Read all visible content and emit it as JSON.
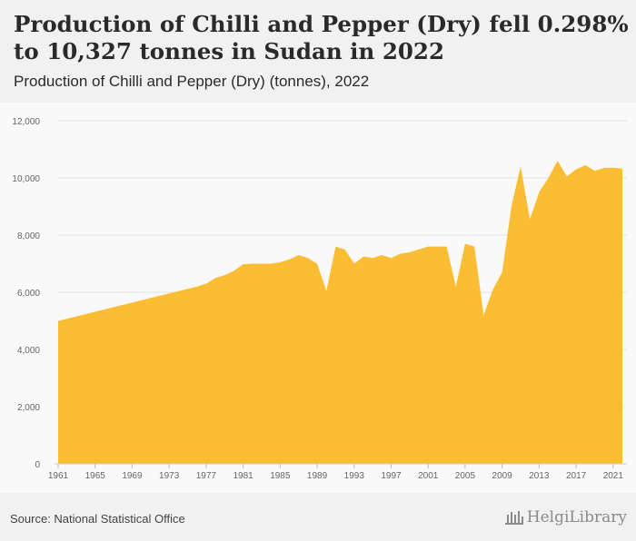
{
  "header": {
    "title": "Production of Chilli and Pepper (Dry) fell 0.298% to 10,327 tonnes in Sudan in 2022",
    "subtitle": "Production of Chilli and Pepper (Dry) (tonnes), 2022"
  },
  "footer": {
    "source": "Source: National Statistical Office",
    "logo_text": "HelgiLibrary"
  },
  "colors": {
    "area_fill": "#fbbd33",
    "grid": "#e2e2e2",
    "header_bg": "#f1f1f1",
    "plot_bg": "#f9f9f9"
  },
  "chart_data": {
    "type": "area",
    "title": "Production of Chilli and Pepper (Dry) fell 0.298% to 10,327 tonnes in Sudan in 2022",
    "subtitle": "Production of Chilli and Pepper (Dry) (tonnes), 2022",
    "xlabel": "",
    "ylabel": "",
    "ylim": [
      0,
      12000
    ],
    "yticks": [
      0,
      2000,
      4000,
      6000,
      8000,
      10000,
      12000
    ],
    "ytick_labels": [
      "0",
      "2,000",
      "4,000",
      "6,000",
      "8,000",
      "10,000",
      "12,000"
    ],
    "xticks": [
      1961,
      1965,
      1969,
      1973,
      1977,
      1981,
      1985,
      1989,
      1993,
      1997,
      2001,
      2005,
      2009,
      2013,
      2017,
      2021
    ],
    "xtick_labels": [
      "1961",
      "1965",
      "1969",
      "1973",
      "1977",
      "1981",
      "1985",
      "1989",
      "1993",
      "1997",
      "2001",
      "2005",
      "2009",
      "2013",
      "2017",
      "2021"
    ],
    "grid": true,
    "legend": "none",
    "series": [
      {
        "x": [
          1961,
          1962,
          1963,
          1964,
          1965,
          1966,
          1967,
          1968,
          1969,
          1970,
          1971,
          1972,
          1973,
          1974,
          1975,
          1976,
          1977,
          1978,
          1979,
          1980,
          1981,
          1982,
          1983,
          1984,
          1985,
          1986,
          1987,
          1988,
          1989,
          1990,
          1991,
          1992,
          1993,
          1994,
          1995,
          1996,
          1997,
          1998,
          1999,
          2000,
          2001,
          2002,
          2003,
          2004,
          2005,
          2006,
          2007,
          2008,
          2009,
          2010,
          2011,
          2012,
          2013,
          2014,
          2015,
          2016,
          2017,
          2018,
          2019,
          2020,
          2021,
          2022
        ],
        "values": [
          5000,
          5080,
          5160,
          5240,
          5320,
          5400,
          5480,
          5560,
          5640,
          5720,
          5800,
          5880,
          5960,
          6040,
          6120,
          6200,
          6300,
          6500,
          6600,
          6750,
          6980,
          7000,
          7000,
          7000,
          7050,
          7150,
          7300,
          7200,
          7000,
          6050,
          7600,
          7500,
          7000,
          7250,
          7200,
          7300,
          7200,
          7350,
          7400,
          7500,
          7600,
          7600,
          7600,
          6200,
          7700,
          7600,
          5200,
          6100,
          6700,
          9000,
          10400,
          8550,
          9500,
          10000,
          10600,
          10050,
          10300,
          10450,
          10250,
          10350,
          10358,
          10327
        ]
      }
    ]
  }
}
